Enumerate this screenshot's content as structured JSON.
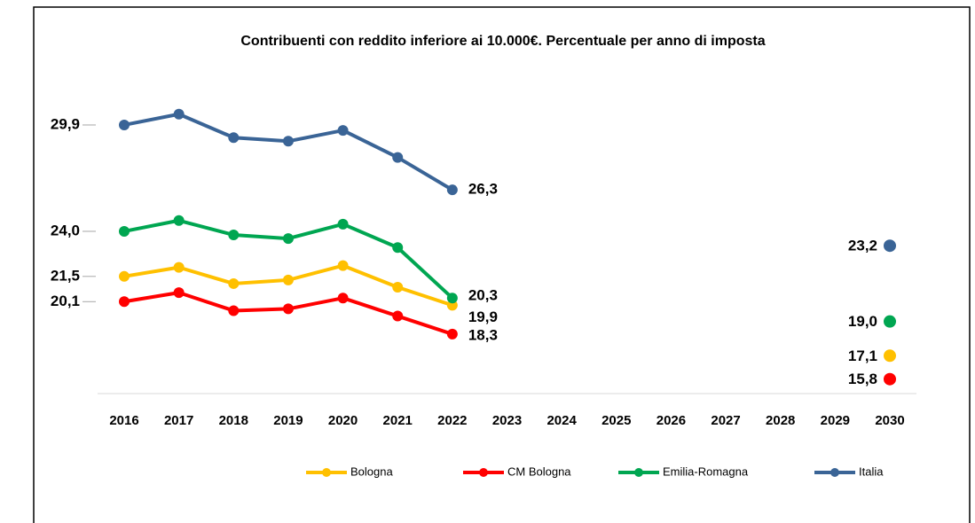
{
  "chart_data": {
    "type": "line",
    "title": "Contribuenti con reddito inferiore ai 10.000€. Percentuale per anno di imposta",
    "categories": [
      "2016",
      "2017",
      "2018",
      "2019",
      "2020",
      "2021",
      "2022",
      "2023",
      "2024",
      "2025",
      "2026",
      "2027",
      "2028",
      "2029",
      "2030"
    ],
    "ylim": [
      15,
      31
    ],
    "legend": "bottom",
    "series": [
      {
        "name": "Bologna",
        "color": "#FFC000",
        "values": [
          21.5,
          22.0,
          21.1,
          21.3,
          22.1,
          20.9,
          19.9,
          null,
          null,
          null,
          null,
          null,
          null,
          null,
          17.1
        ],
        "value_labels": [
          "21,5",
          null,
          null,
          null,
          null,
          null,
          "19,9",
          null,
          null,
          null,
          null,
          null,
          null,
          null,
          "17,1"
        ]
      },
      {
        "name": "CM Bologna",
        "color": "#FF0000",
        "values": [
          20.1,
          20.6,
          19.6,
          19.7,
          20.3,
          19.3,
          18.3,
          null,
          null,
          null,
          null,
          null,
          null,
          null,
          15.8
        ],
        "value_labels": [
          "20,1",
          null,
          null,
          null,
          null,
          null,
          "18,3",
          null,
          null,
          null,
          null,
          null,
          null,
          null,
          "15,8"
        ]
      },
      {
        "name": "Emilia-Romagna",
        "color": "#00A651",
        "values": [
          24.0,
          24.6,
          23.8,
          23.6,
          24.4,
          23.1,
          20.3,
          null,
          null,
          null,
          null,
          null,
          null,
          null,
          19.0
        ],
        "value_labels": [
          "24,0",
          null,
          null,
          null,
          null,
          null,
          "20,3",
          null,
          null,
          null,
          null,
          null,
          null,
          null,
          "19,0"
        ]
      },
      {
        "name": "Italia",
        "color": "#3A6496",
        "values": [
          29.9,
          30.5,
          29.2,
          29.0,
          29.6,
          28.1,
          26.3,
          null,
          null,
          null,
          null,
          null,
          null,
          null,
          23.2
        ],
        "value_labels": [
          "29,9",
          null,
          null,
          null,
          null,
          null,
          "26,3",
          null,
          null,
          null,
          null,
          null,
          null,
          null,
          "23,2"
        ]
      }
    ]
  }
}
